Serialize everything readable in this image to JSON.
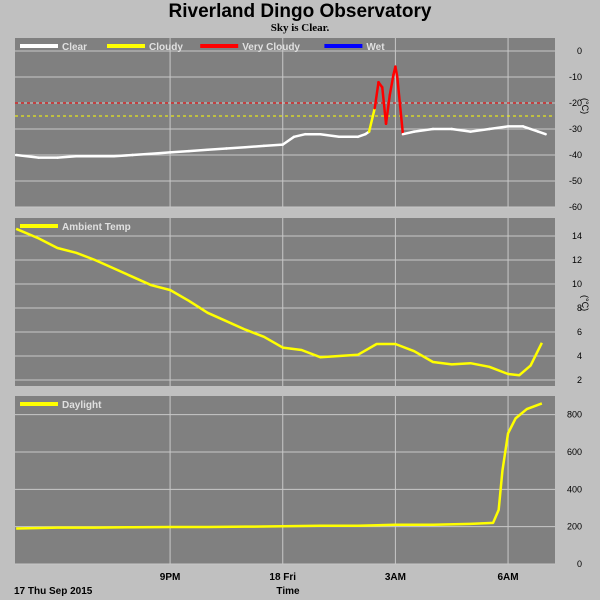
{
  "title": "Riverland Dingo Observatory",
  "subtitle": "Sky is Clear.",
  "x_axis": {
    "label": "Time",
    "start_label": "17 Thu Sep 2015",
    "ticks": [
      {
        "label": "9PM",
        "hour": 21
      },
      {
        "label": "18 Fri",
        "hour": 24
      },
      {
        "label": "3AM",
        "hour": 27
      },
      {
        "label": "6AM",
        "hour": 30
      }
    ]
  },
  "colors": {
    "panel_bg": "#808080",
    "grid": "#c8c8c8",
    "clear": "#ffffff",
    "cloudy": "#ffff00",
    "very_cloudy": "#ff0000",
    "wet": "#0000ff",
    "threshold_cloudy": "#ffff00",
    "threshold_very_cloudy": "#ff0000"
  },
  "chart_data": [
    {
      "type": "line",
      "name": "sky-temperature",
      "unit_label": "(°C)",
      "legend": [
        {
          "label": "Clear",
          "color": "#ffffff"
        },
        {
          "label": "Cloudy",
          "color": "#ffff00"
        },
        {
          "label": "Very Cloudy",
          "color": "#ff0000"
        },
        {
          "label": "Wet",
          "color": "#0000ff"
        }
      ],
      "ylim": [
        -60,
        5
      ],
      "yticks": [
        0,
        -10,
        -20,
        -30,
        -40,
        -50,
        -60
      ],
      "thresholds": [
        {
          "value": -20,
          "color": "#ff0000"
        },
        {
          "value": -25,
          "color": "#ffff00"
        }
      ],
      "x_hours": [
        16.9,
        17.5,
        18.0,
        18.5,
        19.0,
        19.5,
        20.0,
        20.5,
        21.0,
        21.5,
        22.0,
        22.5,
        23.0,
        23.5,
        24.0,
        24.3,
        24.6,
        25.0,
        25.5,
        25.8,
        26.0,
        26.2,
        26.3,
        26.45,
        26.55,
        26.65,
        26.75,
        26.85,
        26.95,
        27.0,
        27.05,
        27.2,
        27.5,
        28.0,
        28.5,
        29.0,
        29.5,
        30.0,
        30.4,
        30.8,
        31.0
      ],
      "values": [
        -40,
        -41,
        -41,
        -40.5,
        -40.5,
        -40.5,
        -40,
        -39.5,
        -39,
        -38.5,
        -38,
        -37.5,
        -37,
        -36.5,
        -36,
        -33,
        -32,
        -32,
        -33,
        -33,
        -33,
        -32,
        -31,
        -22,
        -12,
        -14,
        -28,
        -17,
        -9,
        -6,
        -10,
        -32,
        -31,
        -30,
        -30,
        -31,
        -30,
        -29,
        -29,
        -31,
        -32
      ]
    },
    {
      "type": "line",
      "name": "ambient-temp",
      "legend": [
        {
          "label": "Ambient Temp",
          "color": "#ffff00"
        }
      ],
      "unit_label": "(°C)",
      "ylim": [
        1.5,
        15.5
      ],
      "yticks": [
        14,
        12,
        10,
        8,
        6,
        4,
        2
      ],
      "x_hours": [
        16.9,
        17.5,
        18.0,
        18.5,
        19.0,
        19.5,
        20.0,
        20.5,
        21.0,
        21.5,
        22.0,
        22.5,
        23.0,
        23.5,
        24.0,
        24.5,
        25.0,
        25.5,
        26.0,
        26.5,
        27.0,
        27.5,
        28.0,
        28.5,
        29.0,
        29.5,
        30.0,
        30.3,
        30.6,
        30.9
      ],
      "values": [
        14.6,
        13.8,
        13.0,
        12.6,
        12.0,
        11.3,
        10.6,
        9.9,
        9.5,
        8.6,
        7.6,
        6.9,
        6.2,
        5.6,
        4.7,
        4.5,
        3.9,
        4.0,
        4.1,
        5.0,
        5.0,
        4.4,
        3.5,
        3.3,
        3.4,
        3.1,
        2.5,
        2.4,
        3.2,
        5.1
      ]
    },
    {
      "type": "line",
      "name": "daylight",
      "legend": [
        {
          "label": "Daylight",
          "color": "#ffff00"
        }
      ],
      "ylim": [
        0,
        900
      ],
      "yticks": [
        800,
        600,
        400,
        200,
        0
      ],
      "x_hours": [
        16.9,
        18.0,
        19.0,
        20.0,
        21.0,
        22.0,
        23.0,
        24.0,
        25.0,
        26.0,
        27.0,
        28.0,
        29.0,
        29.6,
        29.75,
        29.85,
        30.0,
        30.2,
        30.5,
        30.9
      ],
      "values": [
        190,
        195,
        195,
        197,
        198,
        198,
        200,
        202,
        205,
        205,
        210,
        210,
        215,
        220,
        290,
        500,
        700,
        780,
        830,
        860
      ]
    }
  ]
}
